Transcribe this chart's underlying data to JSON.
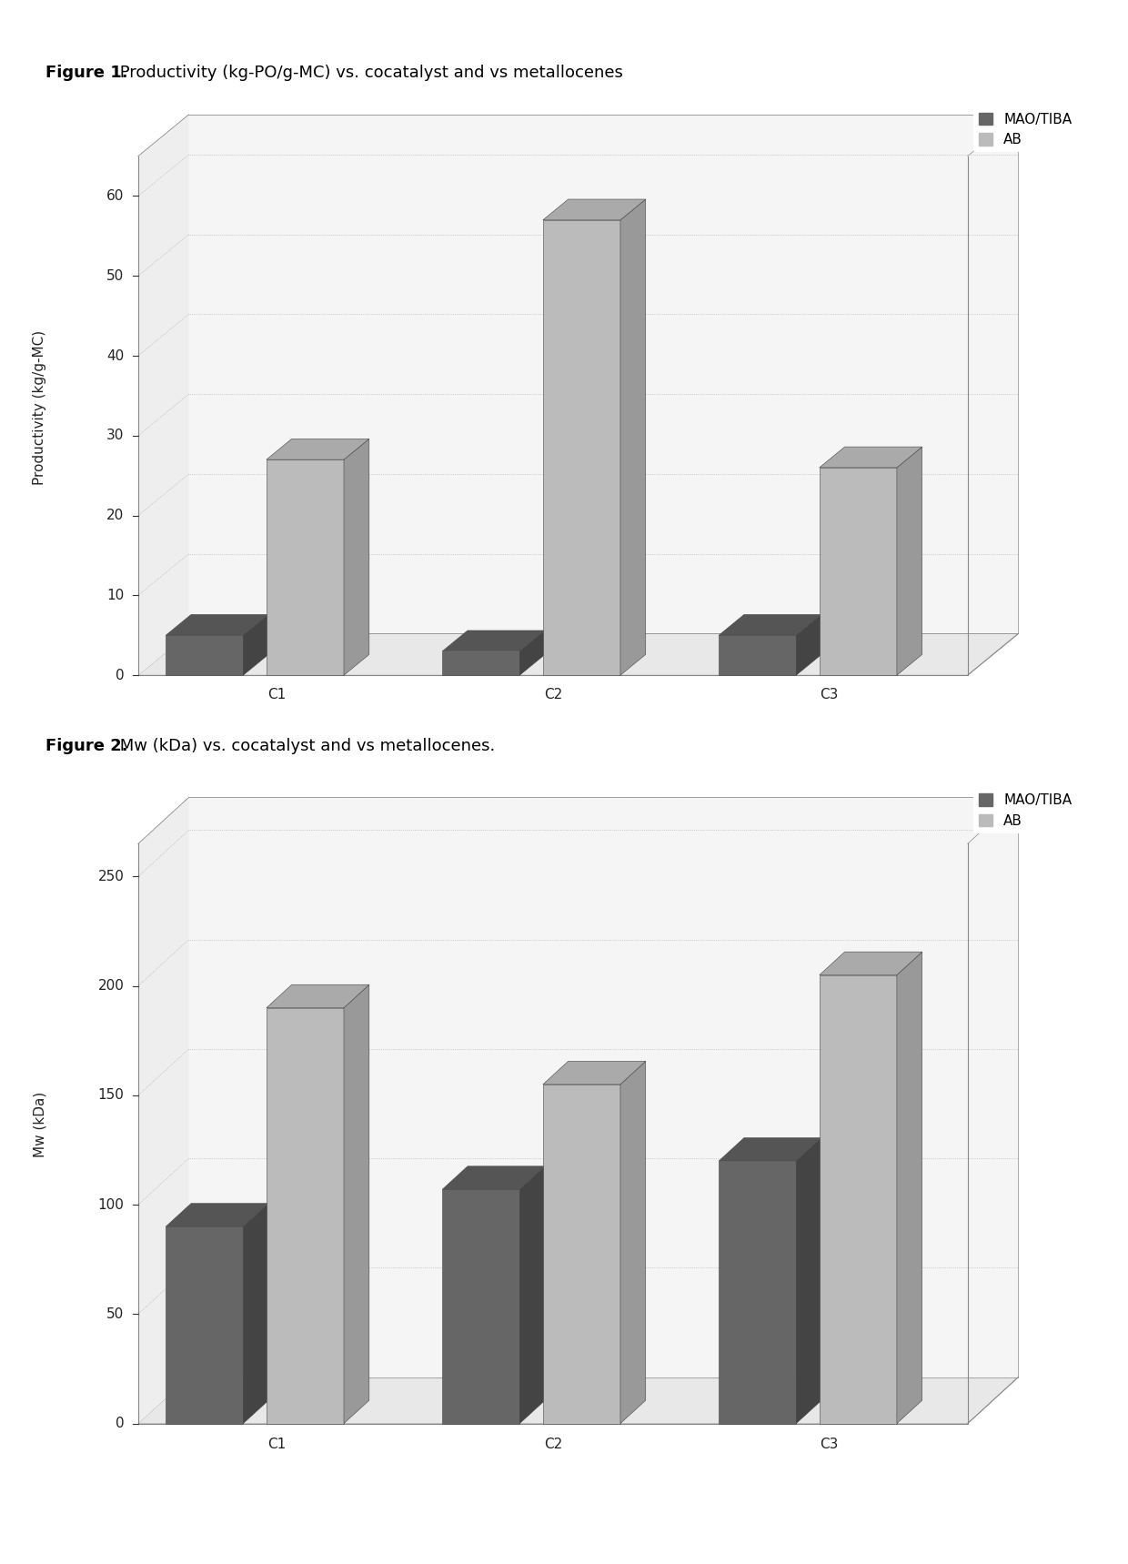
{
  "fig1": {
    "title_bold": "Figure 1.",
    "title_normal": " Productivity (kg-PO/g-MC) vs. cocatalyst and vs metallocenes",
    "categories": [
      "C1",
      "C2",
      "C3"
    ],
    "mao_tiba": [
      5.0,
      3.0,
      5.0
    ],
    "ab": [
      27.0,
      57.0,
      26.0
    ],
    "ylabel": "Productivity (kg/g-MC)",
    "ylim": [
      0,
      65
    ],
    "yticks": [
      0,
      10,
      20,
      30,
      40,
      50,
      60
    ],
    "color_mao": "#666666",
    "color_ab": "#bbbbbb",
    "color_mao_side": "#444444",
    "color_ab_side": "#999999",
    "color_mao_top": "#555555",
    "color_ab_top": "#aaaaaa",
    "legend_mao": "MAO/TIBA",
    "legend_ab": "AB"
  },
  "fig2": {
    "title_bold": "Figure 2.",
    "title_normal": " Mw (kDa) vs. cocatalyst and vs metallocenes.",
    "categories": [
      "C1",
      "C2",
      "C3"
    ],
    "mao_tiba": [
      90.0,
      107.0,
      120.0
    ],
    "ab": [
      190.0,
      155.0,
      205.0
    ],
    "ylabel": "Mw (kDa)",
    "ylim": [
      0,
      265
    ],
    "yticks": [
      0,
      50,
      100,
      150,
      200,
      250
    ],
    "color_mao": "#666666",
    "color_ab": "#bbbbbb",
    "color_mao_side": "#444444",
    "color_ab_side": "#999999",
    "color_mao_top": "#555555",
    "color_ab_top": "#aaaaaa",
    "legend_mao": "MAO/TIBA",
    "legend_ab": "AB"
  },
  "background_color": "#ffffff",
  "plot_bg_color": "#ffffff",
  "bar_width": 0.35,
  "title_fontsize": 13,
  "axis_fontsize": 11,
  "tick_fontsize": 11,
  "legend_fontsize": 11
}
